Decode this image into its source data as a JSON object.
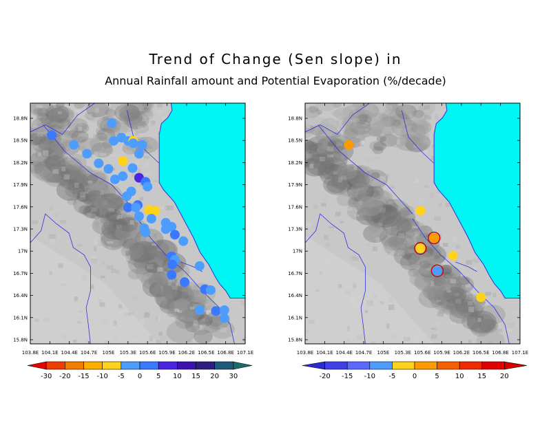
{
  "title": "Trend of Change (Sen slope) in",
  "subtitle": "Annual Rainfall amount and Potential Evaporation (%/decade)",
  "colors": {
    "sea": "#00f5f5",
    "river": "#3030e0",
    "frame": "#000000"
  },
  "left_map": {
    "y_ticks": [
      "18.8N",
      "18.5N",
      "18.2N",
      "17.9N",
      "17.6N",
      "17.3N",
      "17N",
      "16.7N",
      "16.4N",
      "16.1N",
      "15.8N"
    ],
    "x_ticks": [
      "103.8E",
      "104.1E",
      "104.4E",
      "104.7E",
      "105E",
      "105.3E",
      "105.6E",
      "105.9E",
      "106.2E",
      "106.5E",
      "106.8E",
      "107.1E"
    ],
    "colorbar": {
      "labels": [
        "-30",
        "-20",
        "-15",
        "-10",
        "-5",
        "0",
        "5",
        "10",
        "15",
        "20",
        "30"
      ],
      "colors": [
        "#e60000",
        "#ee3d00",
        "#f57a00",
        "#ffae00",
        "#ffd21c",
        "#4d9dff",
        "#3a78ff",
        "#4a25e0",
        "#3d10b0",
        "#2c1f80",
        "#1f5a7a",
        "#1b6b6b"
      ]
    },
    "points": [
      {
        "lon": 105.05,
        "lat": 18.55,
        "value": -3
      },
      {
        "lon": 104.47,
        "lat": 18.28,
        "value": -3
      },
      {
        "lon": 104.13,
        "lat": 18.4,
        "value": 4
      },
      {
        "lon": 104.67,
        "lat": 18.17,
        "value": -3
      },
      {
        "lon": 104.85,
        "lat": 18.05,
        "value": -3
      },
      {
        "lon": 105.0,
        "lat": 17.98,
        "value": -3
      },
      {
        "lon": 105.08,
        "lat": 18.33,
        "value": -3
      },
      {
        "lon": 105.2,
        "lat": 18.37,
        "value": -3
      },
      {
        "lon": 105.3,
        "lat": 18.33,
        "value": -3
      },
      {
        "lon": 105.38,
        "lat": 18.33,
        "value": -8
      },
      {
        "lon": 105.38,
        "lat": 18.3,
        "value": -3
      },
      {
        "lon": 105.52,
        "lat": 18.28,
        "value": -3
      },
      {
        "lon": 105.47,
        "lat": 18.17,
        "value": -3
      },
      {
        "lon": 105.22,
        "lat": 18.08,
        "value": -8
      },
      {
        "lon": 105.37,
        "lat": 17.99,
        "value": -3
      },
      {
        "lon": 105.1,
        "lat": 17.85,
        "value": -3
      },
      {
        "lon": 105.22,
        "lat": 17.89,
        "value": -3
      },
      {
        "lon": 105.47,
        "lat": 17.87,
        "value": 8
      },
      {
        "lon": 105.57,
        "lat": 17.82,
        "value": 4
      },
      {
        "lon": 105.6,
        "lat": 17.76,
        "value": -3
      },
      {
        "lon": 105.35,
        "lat": 17.7,
        "value": -3
      },
      {
        "lon": 105.28,
        "lat": 17.64,
        "value": -3
      },
      {
        "lon": 105.45,
        "lat": 17.53,
        "value": 4
      },
      {
        "lon": 105.3,
        "lat": 17.5,
        "value": 4
      },
      {
        "lon": 105.42,
        "lat": 17.5,
        "value": -3
      },
      {
        "lon": 105.62,
        "lat": 17.47,
        "value": -8
      },
      {
        "lon": 105.72,
        "lat": 17.46,
        "value": -8
      },
      {
        "lon": 105.47,
        "lat": 17.39,
        "value": -3
      },
      {
        "lon": 105.66,
        "lat": 17.36,
        "value": -3
      },
      {
        "lon": 105.88,
        "lat": 17.31,
        "value": -3
      },
      {
        "lon": 105.97,
        "lat": 17.26,
        "value": -3
      },
      {
        "lon": 105.55,
        "lat": 17.24,
        "value": -3
      },
      {
        "lon": 105.88,
        "lat": 17.23,
        "value": -3
      },
      {
        "lon": 105.57,
        "lat": 17.19,
        "value": -3
      },
      {
        "lon": 106.02,
        "lat": 17.16,
        "value": 4
      },
      {
        "lon": 106.15,
        "lat": 17.08,
        "value": -3
      },
      {
        "lon": 105.97,
        "lat": 16.89,
        "value": 4
      },
      {
        "lon": 106.02,
        "lat": 16.85,
        "value": -3
      },
      {
        "lon": 105.98,
        "lat": 16.79,
        "value": 4
      },
      {
        "lon": 105.97,
        "lat": 16.66,
        "value": 4
      },
      {
        "lon": 106.4,
        "lat": 16.77,
        "value": -3
      },
      {
        "lon": 106.17,
        "lat": 16.57,
        "value": 4
      },
      {
        "lon": 106.48,
        "lat": 16.48,
        "value": 4
      },
      {
        "lon": 106.57,
        "lat": 16.47,
        "value": -3
      },
      {
        "lon": 106.65,
        "lat": 16.21,
        "value": 4
      },
      {
        "lon": 106.78,
        "lat": 16.22,
        "value": -3
      },
      {
        "lon": 106.4,
        "lat": 16.22,
        "value": -3
      },
      {
        "lon": 106.78,
        "lat": 16.12,
        "value": -3
      }
    ]
  },
  "right_map": {
    "y_ticks": [
      "18.8N",
      "18.5N",
      "18.2N",
      "17.9N",
      "17.6N",
      "17.3N",
      "17N",
      "16.7N",
      "16.4N",
      "16.1N",
      "15.8N"
    ],
    "x_ticks": [
      "103.8E",
      "104.1E",
      "104.4E",
      "104.7E",
      "105E",
      "105.3E",
      "105.6E",
      "105.9E",
      "106.2E",
      "106.5E",
      "106.8E",
      "107.1E"
    ],
    "colorbar": {
      "labels": [
        "-20",
        "-15",
        "-10",
        "-5",
        "0",
        "5",
        "10",
        "15",
        "20"
      ],
      "colors": [
        "#2a2ad0",
        "#4040e8",
        "#5a6aff",
        "#4d9dff",
        "#ffd21c",
        "#ff9b00",
        "#f56000",
        "#ee2a00",
        "#e00000",
        "#d40000"
      ]
    },
    "points": [
      {
        "lon": 104.47,
        "lat": 18.28,
        "value": 4,
        "circled": false
      },
      {
        "lon": 105.57,
        "lat": 17.46,
        "value": -3,
        "circled": false
      },
      {
        "lon": 105.78,
        "lat": 17.12,
        "value": 4,
        "circled": true
      },
      {
        "lon": 105.57,
        "lat": 16.99,
        "value": -3,
        "circled": true
      },
      {
        "lon": 106.07,
        "lat": 16.9,
        "value": -3,
        "circled": false
      },
      {
        "lon": 105.83,
        "lat": 16.71,
        "value": -6,
        "circled": true
      },
      {
        "lon": 106.5,
        "lat": 16.38,
        "value": -3,
        "circled": false
      }
    ]
  }
}
